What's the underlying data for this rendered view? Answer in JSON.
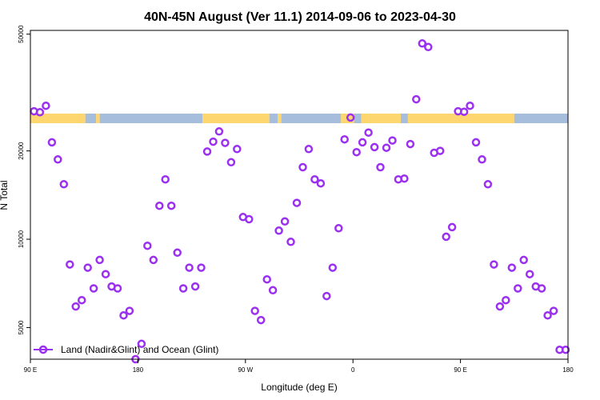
{
  "chart_data": {
    "type": "scatter",
    "title": "40N-45N August (Ver 11.1)   2014-09-06 to 2023-04-30",
    "xlabel": "Longitude (deg E)",
    "ylabel": "N Total",
    "x_ticks": [
      {
        "value": 90,
        "label": "90 E"
      },
      {
        "value": 180,
        "label": "180"
      },
      {
        "value": 270,
        "label": "90 W"
      },
      {
        "value": 360,
        "label": "0"
      },
      {
        "value": 450,
        "label": "90 E"
      },
      {
        "value": 540,
        "label": "180"
      }
    ],
    "y_ticks": [
      5000,
      10000,
      20000,
      50000
    ],
    "y_scale": "log",
    "xlim": [
      90,
      540
    ],
    "ylim": [
      3900,
      51500
    ],
    "grid": false,
    "legend_position": "bottom-left",
    "land_ocean_band": {
      "ocean_color": "#a6bddb",
      "land_color": "#fdd670",
      "segments": [
        {
          "from": 90,
          "to": 136,
          "type": "land"
        },
        {
          "from": 136,
          "to": 145,
          "type": "ocean"
        },
        {
          "from": 145,
          "to": 148,
          "type": "land"
        },
        {
          "from": 148,
          "to": 234,
          "type": "ocean"
        },
        {
          "from": 234,
          "to": 290,
          "type": "land"
        },
        {
          "from": 290,
          "to": 297,
          "type": "ocean"
        },
        {
          "from": 297,
          "to": 300,
          "type": "land"
        },
        {
          "from": 300,
          "to": 350,
          "type": "ocean"
        },
        {
          "from": 350,
          "to": 361,
          "type": "land"
        },
        {
          "from": 361,
          "to": 367,
          "type": "ocean"
        },
        {
          "from": 367,
          "to": 400,
          "type": "land"
        },
        {
          "from": 400,
          "to": 406,
          "type": "ocean"
        },
        {
          "from": 406,
          "to": 495,
          "type": "land"
        },
        {
          "from": 495,
          "to": 540,
          "type": "ocean"
        }
      ]
    },
    "series": [
      {
        "name": "Land (Nadir&Glint) and Ocean (Glint)",
        "color": "#9b30f0",
        "x": [
          93,
          98,
          103,
          108,
          113,
          118,
          123,
          128,
          133,
          138,
          143,
          148,
          153,
          158,
          163,
          168,
          173,
          178,
          183,
          188,
          193,
          198,
          203,
          208,
          213,
          218,
          223,
          228,
          233,
          238,
          243,
          248,
          253,
          258,
          263,
          268,
          273,
          278,
          283,
          288,
          293,
          298,
          303,
          308,
          313,
          318,
          323,
          328,
          333,
          338,
          343,
          348,
          353,
          358,
          363,
          368,
          373,
          378,
          383,
          388,
          393,
          398,
          403,
          408,
          413,
          418,
          423,
          428,
          433,
          438,
          443,
          448,
          453,
          458,
          463,
          468,
          473,
          478,
          483,
          488,
          493,
          498,
          503,
          508,
          513,
          518,
          523,
          528,
          533,
          538
        ],
        "y": [
          27300,
          27100,
          28500,
          21400,
          18700,
          15400,
          8200,
          5900,
          6200,
          8000,
          6800,
          8500,
          7600,
          6900,
          6800,
          5500,
          5700,
          3900,
          4400,
          9500,
          8500,
          13000,
          16000,
          13000,
          9000,
          6800,
          8000,
          6900,
          8000,
          19900,
          21500,
          23300,
          21300,
          18300,
          20300,
          11900,
          11700,
          5700,
          5300,
          7300,
          6700,
          10700,
          11500,
          9800,
          13300,
          17600,
          20300,
          16000,
          15500,
          6400,
          8000,
          10900,
          21900,
          26000,
          19800,
          21400,
          23100,
          20600,
          17600,
          20500,
          21700,
          16000,
          16100,
          21100,
          30000,
          46500,
          45200,
          19700,
          20000,
          10200,
          11000,
          27300,
          27200,
          28500,
          21400,
          18700,
          15400,
          8200,
          5900,
          6200,
          8000,
          6800,
          8500,
          7600,
          6900,
          6800,
          5500,
          5700,
          4200,
          4200
        ]
      }
    ]
  }
}
